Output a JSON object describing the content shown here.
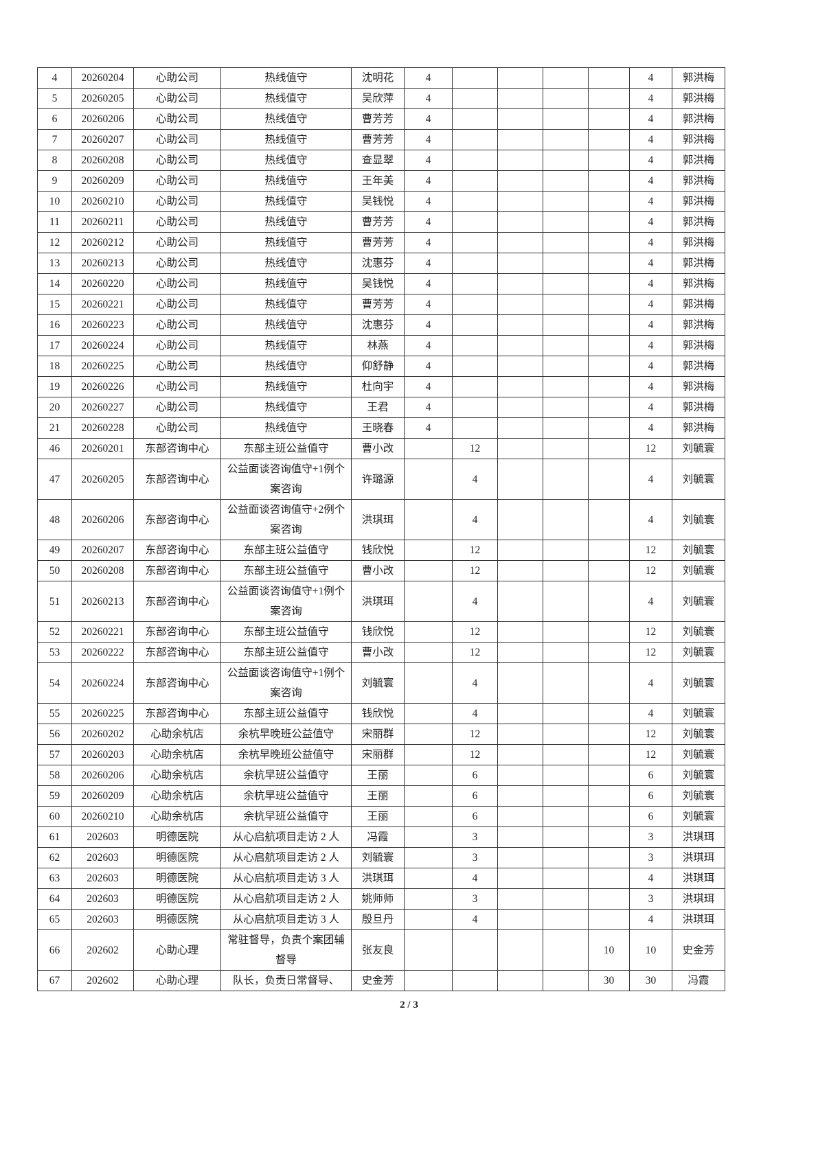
{
  "rows": [
    [
      "4",
      "20260204",
      "心助公司",
      "热线值守",
      "沈明花",
      "4",
      "",
      "",
      "",
      "",
      "4",
      "郭洪梅"
    ],
    [
      "5",
      "20260205",
      "心助公司",
      "热线值守",
      "吴欣萍",
      "4",
      "",
      "",
      "",
      "",
      "4",
      "郭洪梅"
    ],
    [
      "6",
      "20260206",
      "心助公司",
      "热线值守",
      "曹芳芳",
      "4",
      "",
      "",
      "",
      "",
      "4",
      "郭洪梅"
    ],
    [
      "7",
      "20260207",
      "心助公司",
      "热线值守",
      "曹芳芳",
      "4",
      "",
      "",
      "",
      "",
      "4",
      "郭洪梅"
    ],
    [
      "8",
      "20260208",
      "心助公司",
      "热线值守",
      "查显翠",
      "4",
      "",
      "",
      "",
      "",
      "4",
      "郭洪梅"
    ],
    [
      "9",
      "20260209",
      "心助公司",
      "热线值守",
      "王年美",
      "4",
      "",
      "",
      "",
      "",
      "4",
      "郭洪梅"
    ],
    [
      "10",
      "20260210",
      "心助公司",
      "热线值守",
      "吴钱悦",
      "4",
      "",
      "",
      "",
      "",
      "4",
      "郭洪梅"
    ],
    [
      "11",
      "20260211",
      "心助公司",
      "热线值守",
      "曹芳芳",
      "4",
      "",
      "",
      "",
      "",
      "4",
      "郭洪梅"
    ],
    [
      "12",
      "20260212",
      "心助公司",
      "热线值守",
      "曹芳芳",
      "4",
      "",
      "",
      "",
      "",
      "4",
      "郭洪梅"
    ],
    [
      "13",
      "20260213",
      "心助公司",
      "热线值守",
      "沈惠芬",
      "4",
      "",
      "",
      "",
      "",
      "4",
      "郭洪梅"
    ],
    [
      "14",
      "20260220",
      "心助公司",
      "热线值守",
      "吴钱悦",
      "4",
      "",
      "",
      "",
      "",
      "4",
      "郭洪梅"
    ],
    [
      "15",
      "20260221",
      "心助公司",
      "热线值守",
      "曹芳芳",
      "4",
      "",
      "",
      "",
      "",
      "4",
      "郭洪梅"
    ],
    [
      "16",
      "20260223",
      "心助公司",
      "热线值守",
      "沈惠芬",
      "4",
      "",
      "",
      "",
      "",
      "4",
      "郭洪梅"
    ],
    [
      "17",
      "20260224",
      "心助公司",
      "热线值守",
      "林燕",
      "4",
      "",
      "",
      "",
      "",
      "4",
      "郭洪梅"
    ],
    [
      "18",
      "20260225",
      "心助公司",
      "热线值守",
      "仰舒静",
      "4",
      "",
      "",
      "",
      "",
      "4",
      "郭洪梅"
    ],
    [
      "19",
      "20260226",
      "心助公司",
      "热线值守",
      "杜向宇",
      "4",
      "",
      "",
      "",
      "",
      "4",
      "郭洪梅"
    ],
    [
      "20",
      "20260227",
      "心助公司",
      "热线值守",
      "王君",
      "4",
      "",
      "",
      "",
      "",
      "4",
      "郭洪梅"
    ],
    [
      "21",
      "20260228",
      "心助公司",
      "热线值守",
      "王晓春",
      "4",
      "",
      "",
      "",
      "",
      "4",
      "郭洪梅"
    ],
    [
      "46",
      "20260201",
      "东部咨询中心",
      "东部主班公益值守",
      "曹小改",
      "",
      "12",
      "",
      "",
      "",
      "12",
      "刘毓寰"
    ],
    [
      "47",
      "20260205",
      "东部咨询中心",
      "公益面谈咨询值守+1例个案咨询",
      "许璐源",
      "",
      "4",
      "",
      "",
      "",
      "4",
      "刘毓寰"
    ],
    [
      "48",
      "20260206",
      "东部咨询中心",
      "公益面谈咨询值守+2例个案咨询",
      "洪琪珥",
      "",
      "4",
      "",
      "",
      "",
      "4",
      "刘毓寰"
    ],
    [
      "49",
      "20260207",
      "东部咨询中心",
      "东部主班公益值守",
      "钱欣悦",
      "",
      "12",
      "",
      "",
      "",
      "12",
      "刘毓寰"
    ],
    [
      "50",
      "20260208",
      "东部咨询中心",
      "东部主班公益值守",
      "曹小改",
      "",
      "12",
      "",
      "",
      "",
      "12",
      "刘毓寰"
    ],
    [
      "51",
      "20260213",
      "东部咨询中心",
      "公益面谈咨询值守+1例个案咨询",
      "洪琪珥",
      "",
      "4",
      "",
      "",
      "",
      "4",
      "刘毓寰"
    ],
    [
      "52",
      "20260221",
      "东部咨询中心",
      "东部主班公益值守",
      "钱欣悦",
      "",
      "12",
      "",
      "",
      "",
      "12",
      "刘毓寰"
    ],
    [
      "53",
      "20260222",
      "东部咨询中心",
      "东部主班公益值守",
      "曹小改",
      "",
      "12",
      "",
      "",
      "",
      "12",
      "刘毓寰"
    ],
    [
      "54",
      "20260224",
      "东部咨询中心",
      "公益面谈咨询值守+1例个案咨询",
      "刘毓寰",
      "",
      "4",
      "",
      "",
      "",
      "4",
      "刘毓寰"
    ],
    [
      "55",
      "20260225",
      "东部咨询中心",
      "东部主班公益值守",
      "钱欣悦",
      "",
      "4",
      "",
      "",
      "",
      "4",
      "刘毓寰"
    ],
    [
      "56",
      "20260202",
      "心助余杭店",
      "余杭早晚班公益值守",
      "宋丽群",
      "",
      "12",
      "",
      "",
      "",
      "12",
      "刘毓寰"
    ],
    [
      "57",
      "20260203",
      "心助余杭店",
      "余杭早晚班公益值守",
      "宋丽群",
      "",
      "12",
      "",
      "",
      "",
      "12",
      "刘毓寰"
    ],
    [
      "58",
      "20260206",
      "心助余杭店",
      "余杭早班公益值守",
      "王丽",
      "",
      "6",
      "",
      "",
      "",
      "6",
      "刘毓寰"
    ],
    [
      "59",
      "20260209",
      "心助余杭店",
      "余杭早班公益值守",
      "王丽",
      "",
      "6",
      "",
      "",
      "",
      "6",
      "刘毓寰"
    ],
    [
      "60",
      "20260210",
      "心助余杭店",
      "余杭早班公益值守",
      "王丽",
      "",
      "6",
      "",
      "",
      "",
      "6",
      "刘毓寰"
    ],
    [
      "61",
      "202603",
      "明德医院",
      "从心启航项目走访 2 人",
      "冯霞",
      "",
      "3",
      "",
      "",
      "",
      "3",
      "洪琪珥"
    ],
    [
      "62",
      "202603",
      "明德医院",
      "从心启航项目走访 2 人",
      "刘毓寰",
      "",
      "3",
      "",
      "",
      "",
      "3",
      "洪琪珥"
    ],
    [
      "63",
      "202603",
      "明德医院",
      "从心启航项目走访 3 人",
      "洪琪珥",
      "",
      "4",
      "",
      "",
      "",
      "4",
      "洪琪珥"
    ],
    [
      "64",
      "202603",
      "明德医院",
      "从心启航项目走访 2 人",
      "姚师师",
      "",
      "3",
      "",
      "",
      "",
      "3",
      "洪琪珥"
    ],
    [
      "65",
      "202603",
      "明德医院",
      "从心启航项目走访 3 人",
      "殷旦丹",
      "",
      "4",
      "",
      "",
      "",
      "4",
      "洪琪珥"
    ],
    [
      "66",
      "202602",
      "心助心理",
      "常驻督导，负责个案团辅督导",
      "张友良",
      "",
      "",
      "",
      "",
      "10",
      "10",
      "史金芳"
    ],
    [
      "67",
      "202602",
      "心助心理",
      "队长，负责日常督导、",
      "史金芳",
      "",
      "",
      "",
      "",
      "30",
      "30",
      "冯霞"
    ]
  ],
  "page_number": "2 / 3"
}
